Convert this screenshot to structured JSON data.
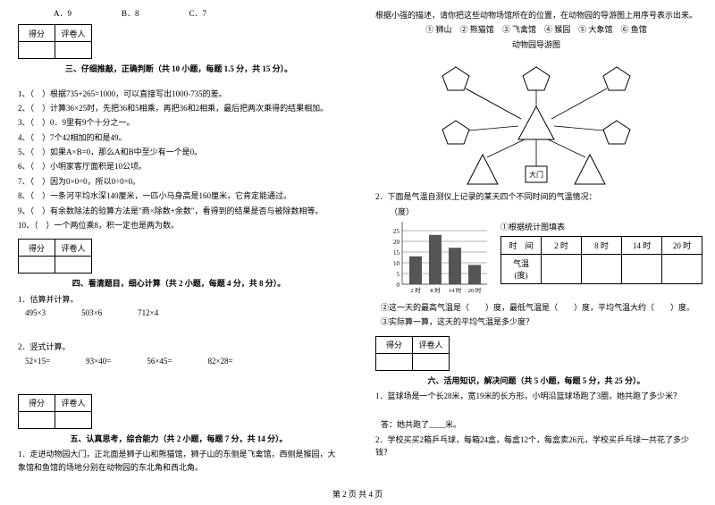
{
  "left": {
    "abc": {
      "a": "A．9",
      "b": "B．8",
      "c": "C．7"
    },
    "score_head": {
      "c1": "得分",
      "c2": "评卷人"
    },
    "s3_title": "三、仔细推敲，正确判断（共 10 小题，每题 1.5 分，共 15 分）。",
    "s3_items": [
      "1、（　）根据735+265=1000，可以直接写出1000-735的差。",
      "2、（　）计算36×25时，先把36和5相乘，再把36和2相乘，最后把两次乘得的结果相加。",
      "3、（　）0．9里有9个十分之一。",
      "4、（　）7个42相加的和是49。",
      "5、（　）如果A×B=0，那么A和B中至少有一个是0。",
      "6、（　）小明家客厅面积是10公顷。",
      "7、（　）因为0×0=0，所以0÷0=0。",
      "8、（　）一条河平均水深140厘米，一匹小马身高是160厘米，它肯定能通过。",
      "9、（　）有余数除法的验算方法是\"商×除数+余数\"，看得到的结果是否与被除数相等。",
      "10、（　）一个两位乘8，积一定也是两为数。"
    ],
    "s4_title": "四、看清题目，细心计算（共 2 小题，每题 4 分，共 8 分）。",
    "s4_q1": "1．估算并计算。",
    "s4_q1_items": [
      "495×3",
      "503×6",
      "712×4"
    ],
    "s4_q2": "2．竖式计算。",
    "s4_q2_items": [
      "52×15=",
      "93×40=",
      "56×45=",
      "82×28="
    ],
    "s5_title": "五、认真思考，综合能力（共 2 小题，每题 7 分，共 14 分）。",
    "s5_q1": "1．走进动物园大门，正北面是狮子山和熊猫馆，狮子山的东侧是飞禽馆，西侧是猴园，大象馆和鱼馆的场地分别在动物园的东北角和西北角。"
  },
  "right": {
    "zoo_intro": "根据小强的描述，请你把这些动物场馆所在的位置，在动物园的导游图上用序号表示出来。",
    "zoo_legend": "① 狮山　② 熊猫馆　③ 飞禽馆　④ 猴园　⑤ 大象馆　⑥ 鱼馆",
    "zoo_title": "动物园导游图",
    "s5_q2": "2．下面是气温自测仪上记录的某天四个不同时间的气温情况：",
    "degree_label": "（度）",
    "chart_title": "①根据统计图填表",
    "ytick": [
      "25",
      "20",
      "15",
      "10",
      "5",
      "0"
    ],
    "xtick": [
      "2 时",
      "8 时",
      "14 时",
      "20 时"
    ],
    "bars": [
      13,
      23,
      17,
      9
    ],
    "bar_color": "#555",
    "temp_table": {
      "c1": "时　间",
      "c2": "2 时",
      "c3": "8 时",
      "c4": "14 时",
      "c5": "20 时",
      "r2": "气温(度)"
    },
    "s5_q2b": "②这一天的最高气温是（　　）度，最低气温是（　　）度，平均气温大约（　　）度。",
    "s5_q2c": "③实际算一算，这天的平均气温是多少度？",
    "s6_title": "六、活用知识，解决问题（共 5 小题，每题 5 分，共 25 分）。",
    "s6_q1": "1．篮球场是一个长28米，宽19米的长方形，小明沿篮球场跑了3圈，她共跑了多少米？",
    "s6_q1_ans": "答：她共跑了____米。",
    "s6_q2": "2．学校买买2箱乒乓球，每箱24盒，每盒12个，每盒卖26元，学校买乒乓球一共花了多少钱？"
  },
  "footer": "第 2 页 共 4 页",
  "gate_label": "大门"
}
